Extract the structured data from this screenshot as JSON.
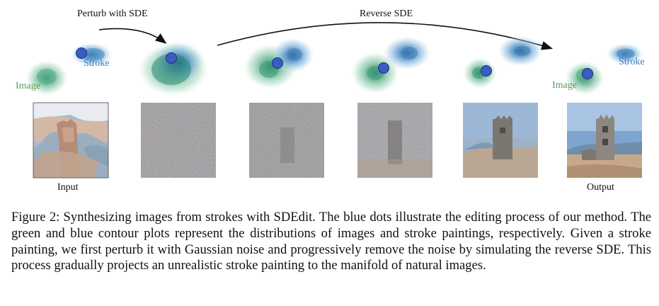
{
  "figure": {
    "arrow_labels": {
      "perturb": "Perturb with SDE",
      "reverse": "Reverse SDE"
    },
    "contour_labels": {
      "image_left": "Image",
      "stroke_left": "Stroke",
      "image_right": "Image",
      "stroke_right": "Stroke"
    },
    "panel_labels": {
      "input": "Input",
      "output": "Output"
    },
    "colors": {
      "image_contour": "#3f9f74",
      "stroke_contour": "#3d7eb8",
      "dot": "#3b5cc4"
    }
  },
  "caption": {
    "text": "Figure 2: Synthesizing images from strokes with SDEdit. The blue dots illustrate the editing process of our method. The green and blue contour plots represent the distributions of images and stroke paintings, respectively. Given a stroke painting, we first perturb it with Gaussian noise and progressively remove the noise by simulating the reverse SDE. This process gradually projects an unrealistic stroke painting to the manifold of natural images."
  }
}
